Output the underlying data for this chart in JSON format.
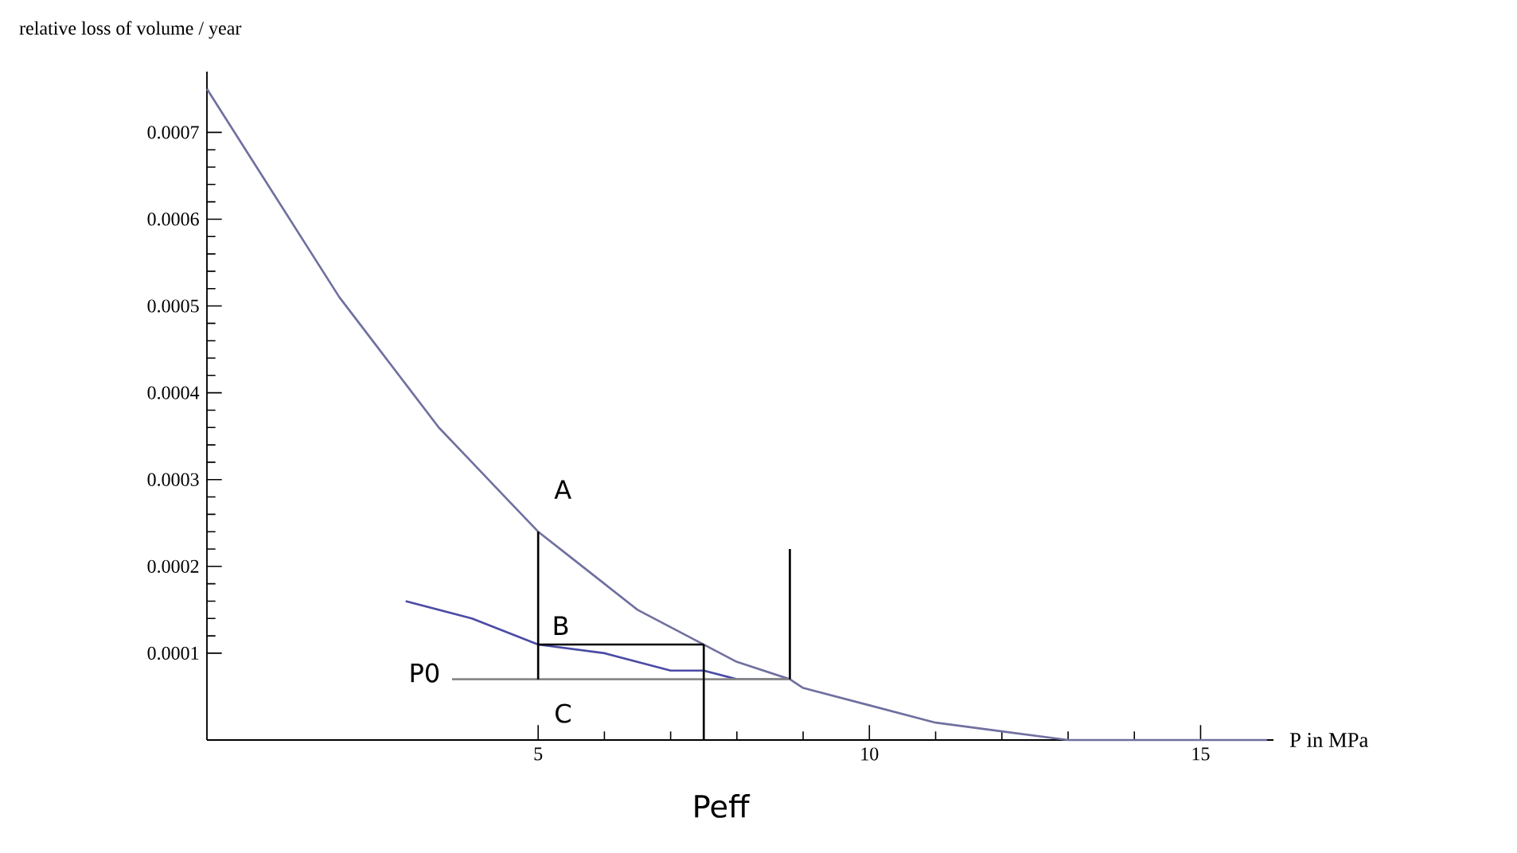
{
  "chart_data": {
    "type": "line",
    "xlabel": "P in MPa",
    "ylabel": "relative loss of volume / year",
    "xlim": [
      0,
      16.1
    ],
    "ylim": [
      0,
      0.00077
    ],
    "xticks": [
      5,
      10,
      15
    ],
    "yticks": [
      0.0001,
      0.0002,
      0.0003,
      0.0004,
      0.0005,
      0.0006,
      0.0007
    ],
    "marker": "none",
    "line_style": "solid",
    "series": [
      {
        "color": "#7070a0",
        "x": [
          0,
          0.5,
          1,
          1.5,
          2,
          2.5,
          3,
          3.5,
          4,
          4.5,
          5,
          5.5,
          6,
          6.5,
          7,
          7.5,
          8,
          8.8,
          9,
          10,
          11,
          12,
          13,
          14,
          15,
          16
        ],
        "values": [
          0.00075,
          0.00069,
          0.00063,
          0.00057,
          0.00051,
          0.00046,
          0.00041,
          0.00036,
          0.00032,
          0.00028,
          0.00024,
          0.00021,
          0.00018,
          0.00015,
          0.00013,
          0.00011,
          9e-05,
          7e-05,
          6e-05,
          4e-05,
          2e-05,
          1e-05,
          0,
          0,
          0,
          0
        ]
      },
      {
        "color": "#4b4ba6",
        "x": [
          3,
          4,
          5,
          6,
          7,
          7.5,
          8,
          8.8
        ],
        "values": [
          0.00016,
          0.00014,
          0.00011,
          0.0001,
          8e-05,
          8e-05,
          7e-05,
          7e-05
        ]
      },
      {
        "color": "#888888",
        "x": [
          3.7,
          8.8
        ],
        "values": [
          7e-05,
          7e-05
        ]
      },
      {
        "color": "#000000",
        "x": [
          5,
          5
        ],
        "values": [
          7e-05,
          0.00024
        ]
      },
      {
        "color": "#000000",
        "x": [
          5,
          7.5
        ],
        "values": [
          0.00011,
          0.00011
        ]
      },
      {
        "color": "#000000",
        "x": [
          7.5,
          7.5
        ],
        "values": [
          0,
          0.00011
        ]
      },
      {
        "color": "#000000",
        "x": [
          8.8,
          8.8
        ],
        "values": [
          7e-05,
          0.00022
        ]
      }
    ],
    "annotations": [
      {
        "text": "A",
        "x": 5,
        "y": 0.00024
      },
      {
        "text": "B",
        "x": 5,
        "y": 0.00011
      },
      {
        "text": "C",
        "x": 5,
        "y": 7e-05
      },
      {
        "text": "P0",
        "x": 3.7,
        "y": 7e-05
      },
      {
        "text": "Peff",
        "x": 7.5,
        "y": 0
      }
    ]
  }
}
